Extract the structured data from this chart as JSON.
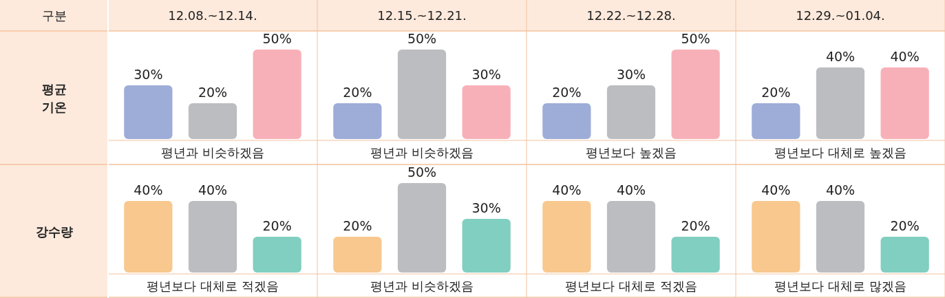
{
  "chart_data": [
    {
      "type": "other",
      "title": "구분"
    },
    {
      "type": "bar",
      "title": "12.08.~12.14.",
      "ylabel": "평균 기온",
      "categories": [
        null,
        null,
        null
      ],
      "values": [
        30,
        20,
        50
      ],
      "colors": [
        "#9eacd8",
        "#bcbdc1",
        "#f8b0b8"
      ],
      "value_labels": [
        "30%",
        "20%",
        "50%"
      ],
      "annotations": [
        "평년과 비슷하겠음"
      ]
    },
    {
      "type": "bar",
      "title": "12.15.~12.21.",
      "categories": [
        null,
        null,
        null
      ],
      "values": [
        20,
        50,
        30
      ],
      "colors": [
        "#9eacd8",
        "#bcbdc1",
        "#f8b0b8"
      ],
      "value_labels": [
        "20%",
        "50%",
        "30%"
      ],
      "annotations": [
        "평년과 비슷하겠음"
      ]
    },
    {
      "type": "bar",
      "title": "12.22.~12.28.",
      "categories": [
        null,
        null,
        null
      ],
      "values": [
        20,
        30,
        50
      ],
      "colors": [
        "#9eacd8",
        "#bcbdc1",
        "#f8b0b8"
      ],
      "value_labels": [
        "20%",
        "30%",
        "50%"
      ],
      "annotations": [
        "평년보다 높겠음"
      ]
    },
    {
      "type": "bar",
      "title": "12.29.~01.04.",
      "categories": [
        null,
        null,
        null
      ],
      "values": [
        20,
        40,
        40
      ],
      "colors": [
        "#9eacd8",
        "#bcbdc1",
        "#f8b0b8"
      ],
      "value_labels": [
        "20%",
        "40%",
        "40%"
      ],
      "annotations": [
        "평년보다 대체로 높겠음"
      ]
    },
    {
      "type": "bar",
      "ylabel": "강수량",
      "categories": [
        null,
        null,
        null
      ],
      "values": [
        40,
        40,
        20
      ],
      "colors": [
        "#f8c88f",
        "#bcbdc1",
        "#80cfc0"
      ],
      "value_labels": [
        "40%",
        "40%",
        "20%"
      ],
      "annotations": [
        "평년보다 대체로 적겠음"
      ]
    },
    {
      "type": "bar",
      "categories": [
        null,
        null,
        null
      ],
      "values": [
        20,
        50,
        30
      ],
      "colors": [
        "#f8c88f",
        "#bcbdc1",
        "#80cfc0"
      ],
      "value_labels": [
        "20%",
        "50%",
        "30%"
      ],
      "annotations": [
        "평년과 비슷하겠음"
      ]
    },
    {
      "type": "bar",
      "categories": [
        null,
        null,
        null
      ],
      "values": [
        40,
        40,
        20
      ],
      "colors": [
        "#f8c88f",
        "#bcbdc1",
        "#80cfc0"
      ],
      "value_labels": [
        "40%",
        "40%",
        "20%"
      ],
      "annotations": [
        "평년보다 대체로 적겠음"
      ]
    },
    {
      "type": "bar",
      "categories": [
        null,
        null,
        null
      ],
      "values": [
        40,
        40,
        20
      ],
      "colors": [
        "#f8c88f",
        "#bcbdc1",
        "#80cfc0"
      ],
      "value_labels": [
        "40%",
        "40%",
        "20%"
      ],
      "annotations": [
        "평년보다 대체로 많겠음"
      ]
    }
  ]
}
